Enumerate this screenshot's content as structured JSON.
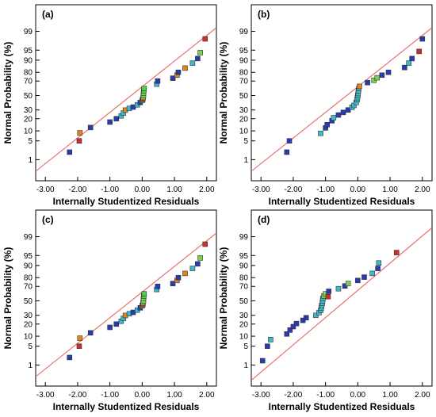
{
  "chart_data": [
    {
      "type": "scatter",
      "panel_label": "(a)",
      "xlabel": "Internally Studentized Residuals",
      "ylabel": "Normal Probability (%)",
      "xlim": [
        -3.3,
        2.3
      ],
      "x_ticks": [
        -3.0,
        -2.0,
        -1.0,
        0.0,
        1.0,
        2.0
      ],
      "x_tick_labels": [
        "-3.00",
        "-2.00",
        "-1.00",
        "0.00",
        "1.00",
        "2.00"
      ],
      "y_scale": "normal-probability",
      "y_ticks": [
        1,
        5,
        10,
        20,
        30,
        50,
        70,
        80,
        90,
        95,
        99
      ],
      "y_tick_labels": [
        "1",
        "5",
        "10",
        "20",
        "30",
        "50",
        "70",
        "80",
        "90",
        "95",
        "99"
      ],
      "fit_line": [
        [
          -3.3,
          0.3
        ],
        [
          2.3,
          99.3
        ]
      ],
      "points": [
        [
          -2.25,
          2.0,
          "#2a3bb0"
        ],
        [
          -1.95,
          5.0,
          "#c8302b"
        ],
        [
          -1.93,
          8.8,
          "#e0851f"
        ],
        [
          -1.6,
          12.3,
          "#2a3bb0"
        ],
        [
          -1.0,
          16.8,
          "#2a3bb0"
        ],
        [
          -0.8,
          20.0,
          "#2a3bb0"
        ],
        [
          -0.65,
          23.0,
          "#3fb8c8"
        ],
        [
          -0.58,
          26.3,
          "#3fb8c8"
        ],
        [
          -0.52,
          29.8,
          "#e0851f"
        ],
        [
          -0.4,
          32.0,
          "#3fb8c8"
        ],
        [
          -0.28,
          33.8,
          "#2a3bb0"
        ],
        [
          -0.15,
          36.8,
          "#3fb8c8"
        ],
        [
          -0.06,
          40.0,
          "#2a3bb0"
        ],
        [
          0.0,
          43.0,
          "#7ad14a"
        ],
        [
          0.02,
          44.5,
          "#c8302b"
        ],
        [
          0.03,
          47.3,
          "#7ad14a"
        ],
        [
          0.04,
          50.0,
          "#7ad14a"
        ],
        [
          0.04,
          53.5,
          "#7ad14a"
        ],
        [
          0.05,
          57.0,
          "#4bd14a"
        ],
        [
          0.06,
          60.0,
          "#4bd14a"
        ],
        [
          0.45,
          66.0,
          "#3fb8c8"
        ],
        [
          0.48,
          70.0,
          "#2a3bb0"
        ],
        [
          0.95,
          73.5,
          "#2a3bb0"
        ],
        [
          1.08,
          77.0,
          "#e0851f"
        ],
        [
          1.12,
          80.0,
          "#2a3bb0"
        ],
        [
          1.33,
          84.0,
          "#e0851f"
        ],
        [
          1.56,
          88.0,
          "#3fb8c8"
        ],
        [
          1.72,
          91.0,
          "#2a3bb0"
        ],
        [
          1.8,
          94.0,
          "#7ad14a"
        ],
        [
          1.95,
          98.0,
          "#c8302b"
        ]
      ]
    },
    {
      "type": "scatter",
      "panel_label": "(b)",
      "xlabel": "Internally Studentized Residuals",
      "ylabel": "Normal Probability (%)",
      "xlim": [
        -3.3,
        2.3
      ],
      "x_ticks": [
        -3.0,
        -2.0,
        -1.0,
        0.0,
        1.0,
        2.0
      ],
      "x_tick_labels": [
        "-3.00",
        "-2.00",
        "-1.00",
        "0.00",
        "1.00",
        "2.00"
      ],
      "y_scale": "normal-probability",
      "y_ticks": [
        1,
        5,
        10,
        20,
        30,
        50,
        70,
        80,
        90,
        95,
        99
      ],
      "y_tick_labels": [
        "1",
        "5",
        "10",
        "20",
        "30",
        "50",
        "70",
        "80",
        "90",
        "95",
        "99"
      ],
      "fit_line": [
        [
          -3.3,
          0.3
        ],
        [
          2.3,
          99.3
        ]
      ],
      "points": [
        [
          -2.2,
          2.0,
          "#2a3bb0"
        ],
        [
          -2.12,
          5.0,
          "#2a3bb0"
        ],
        [
          -1.15,
          8.5,
          "#3fb8c8"
        ],
        [
          -1.0,
          12.0,
          "#2a3bb0"
        ],
        [
          -0.95,
          14.5,
          "#2a3bb0"
        ],
        [
          -0.8,
          18.0,
          "#2a3bb0"
        ],
        [
          -0.75,
          21.0,
          "#3fb8c8"
        ],
        [
          -0.6,
          24.0,
          "#2a3bb0"
        ],
        [
          -0.45,
          27.0,
          "#2a3bb0"
        ],
        [
          -0.3,
          30.0,
          "#2a3bb0"
        ],
        [
          -0.18,
          33.5,
          "#3fb8c8"
        ],
        [
          -0.12,
          36.0,
          "#3fb8c8"
        ],
        [
          -0.05,
          40.0,
          "#3fb8c8"
        ],
        [
          -0.02,
          44.0,
          "#3fb8c8"
        ],
        [
          -0.01,
          47.0,
          "#3fb8c8"
        ],
        [
          0.0,
          50.0,
          "#3fb8c8"
        ],
        [
          0.01,
          53.0,
          "#3fb8c8"
        ],
        [
          0.02,
          57.0,
          "#3fb8c8"
        ],
        [
          0.03,
          60.0,
          "#3fb8c8"
        ],
        [
          0.05,
          63.0,
          "#e0851f"
        ],
        [
          0.3,
          68.0,
          "#2a3bb0"
        ],
        [
          0.5,
          71.0,
          "#7ad14a"
        ],
        [
          0.6,
          74.0,
          "#7ad14a"
        ],
        [
          0.75,
          77.0,
          "#2a3bb0"
        ],
        [
          0.95,
          80.0,
          "#2a3bb0"
        ],
        [
          1.45,
          84.5,
          "#2a3bb0"
        ],
        [
          1.58,
          88.0,
          "#3fb8c8"
        ],
        [
          1.68,
          91.0,
          "#2a3bb0"
        ],
        [
          1.9,
          94.5,
          "#c8302b"
        ],
        [
          2.0,
          98.0,
          "#2a3bb0"
        ]
      ]
    },
    {
      "type": "scatter",
      "panel_label": "(c)",
      "xlabel": "Internally Studentized Residuals",
      "ylabel": "Normal Probability (%)",
      "xlim": [
        -3.3,
        2.3
      ],
      "x_ticks": [
        -3.0,
        -2.0,
        -1.0,
        0.0,
        1.0,
        2.0
      ],
      "x_tick_labels": [
        "-3.00",
        "-2.00",
        "-1.00",
        "0.00",
        "1.00",
        "2.00"
      ],
      "y_scale": "normal-probability",
      "y_ticks": [
        1,
        5,
        10,
        20,
        30,
        50,
        70,
        80,
        90,
        95,
        99
      ],
      "y_tick_labels": [
        "1",
        "5",
        "10",
        "20",
        "30",
        "50",
        "70",
        "80",
        "90",
        "95",
        "99"
      ],
      "fit_line": [
        [
          -3.3,
          0.3
        ],
        [
          2.3,
          99.3
        ]
      ],
      "points": [
        [
          -2.25,
          2.0,
          "#2a3bb0"
        ],
        [
          -1.95,
          5.0,
          "#c8302b"
        ],
        [
          -1.93,
          8.8,
          "#e0851f"
        ],
        [
          -1.6,
          12.3,
          "#2a3bb0"
        ],
        [
          -1.0,
          16.8,
          "#2a3bb0"
        ],
        [
          -0.8,
          20.0,
          "#2a3bb0"
        ],
        [
          -0.65,
          23.0,
          "#3fb8c8"
        ],
        [
          -0.58,
          26.3,
          "#3fb8c8"
        ],
        [
          -0.52,
          29.8,
          "#e0851f"
        ],
        [
          -0.4,
          32.0,
          "#3fb8c8"
        ],
        [
          -0.28,
          33.8,
          "#2a3bb0"
        ],
        [
          -0.15,
          36.8,
          "#3fb8c8"
        ],
        [
          -0.06,
          40.0,
          "#2a3bb0"
        ],
        [
          0.0,
          43.0,
          "#7ad14a"
        ],
        [
          0.02,
          44.5,
          "#c8302b"
        ],
        [
          0.03,
          47.3,
          "#7ad14a"
        ],
        [
          0.04,
          50.0,
          "#7ad14a"
        ],
        [
          0.04,
          53.5,
          "#7ad14a"
        ],
        [
          0.05,
          57.0,
          "#4bd14a"
        ],
        [
          0.06,
          60.0,
          "#4bd14a"
        ],
        [
          0.45,
          66.0,
          "#3fb8c8"
        ],
        [
          0.48,
          70.0,
          "#2a3bb0"
        ],
        [
          0.95,
          73.5,
          "#2a3bb0"
        ],
        [
          1.08,
          77.0,
          "#e0851f"
        ],
        [
          1.12,
          80.0,
          "#2a3bb0"
        ],
        [
          1.33,
          84.0,
          "#e0851f"
        ],
        [
          1.56,
          88.0,
          "#3fb8c8"
        ],
        [
          1.72,
          91.0,
          "#2a3bb0"
        ],
        [
          1.8,
          94.0,
          "#7ad14a"
        ],
        [
          1.95,
          98.0,
          "#c8302b"
        ]
      ]
    },
    {
      "type": "scatter",
      "panel_label": "(d)",
      "xlabel": "Internally Studentized Residuals",
      "ylabel": "Normal Probability (%)",
      "xlim": [
        -3.3,
        2.3
      ],
      "x_ticks": [
        -3.0,
        -2.0,
        -1.0,
        0.0,
        1.0,
        2.0
      ],
      "x_tick_labels": [
        "-3.00",
        "-2.00",
        "-1.00",
        "0.00",
        "1.00",
        "2.00"
      ],
      "y_scale": "normal-probability",
      "y_ticks": [
        1,
        5,
        10,
        20,
        30,
        50,
        70,
        80,
        90,
        95,
        99
      ],
      "y_tick_labels": [
        "1",
        "5",
        "10",
        "20",
        "30",
        "50",
        "70",
        "80",
        "90",
        "95",
        "99"
      ],
      "fit_line": [
        [
          -3.3,
          0.2
        ],
        [
          2.3,
          99.6
        ]
      ],
      "points": [
        [
          -2.95,
          1.5,
          "#2a3bb0"
        ],
        [
          -2.8,
          5.0,
          "#2a3bb0"
        ],
        [
          -2.7,
          8.0,
          "#3fb8c8"
        ],
        [
          -2.2,
          11.5,
          "#2a3bb0"
        ],
        [
          -2.1,
          14.5,
          "#2a3bb0"
        ],
        [
          -2.0,
          17.5,
          "#2a3bb0"
        ],
        [
          -1.9,
          20.5,
          "#2a3bb0"
        ],
        [
          -1.7,
          24.0,
          "#2a3bb0"
        ],
        [
          -1.6,
          27.0,
          "#2a3bb0"
        ],
        [
          -1.3,
          30.0,
          "#3fb8c8"
        ],
        [
          -1.2,
          33.5,
          "#3fb8c8"
        ],
        [
          -1.15,
          36.5,
          "#3fb8c8"
        ],
        [
          -1.13,
          40.0,
          "#3fb8c8"
        ],
        [
          -1.12,
          43.0,
          "#3fb8c8"
        ],
        [
          -1.1,
          46.5,
          "#3fb8c8"
        ],
        [
          -1.09,
          50.0,
          "#3fb8c8"
        ],
        [
          -1.08,
          53.5,
          "#3fb8c8"
        ],
        [
          -1.05,
          57.0,
          "#7ad14a"
        ],
        [
          -1.0,
          60.0,
          "#7ad14a"
        ],
        [
          -0.92,
          56.0,
          "#c8302b"
        ],
        [
          -0.9,
          63.5,
          "#2a3bb0"
        ],
        [
          -0.6,
          67.0,
          "#3fb8c8"
        ],
        [
          -0.4,
          70.5,
          "#2a3bb0"
        ],
        [
          -0.3,
          73.5,
          "#7ad14a"
        ],
        [
          0.0,
          77.0,
          "#2a3bb0"
        ],
        [
          0.2,
          80.5,
          "#2a3bb0"
        ],
        [
          0.45,
          84.0,
          "#3fb8c8"
        ],
        [
          0.62,
          88.0,
          "#2a3bb0"
        ],
        [
          0.65,
          91.5,
          "#3fb8c8"
        ],
        [
          1.2,
          96.0,
          "#c8302b"
        ]
      ]
    }
  ]
}
